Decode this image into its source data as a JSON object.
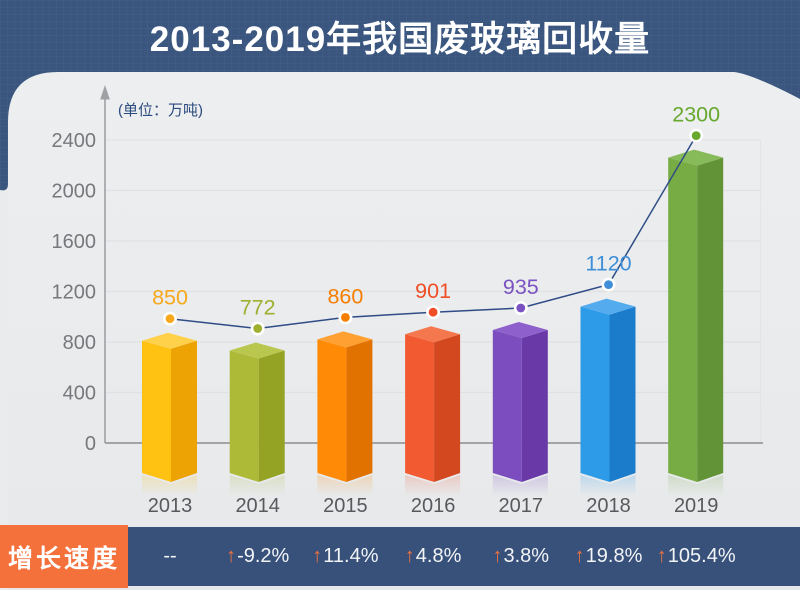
{
  "page": {
    "bg": "#E9EBED",
    "card_bg": "#ECEDEF"
  },
  "header": {
    "title": "2013-2019年我国废玻璃回收量",
    "bg": "#3A567F",
    "text_color": "#FFFFFF"
  },
  "chart_data": {
    "type": "bar",
    "title": "2013-2019年我国废玻璃回收量",
    "unit_label": "(单位：万吨)",
    "categories": [
      "2013",
      "2014",
      "2015",
      "2016",
      "2017",
      "2018",
      "2019"
    ],
    "series": [
      {
        "name": "废玻璃回收量(万吨)",
        "type": "bar+line",
        "values": [
          850,
          772,
          860,
          901,
          935,
          1120,
          2300
        ]
      },
      {
        "name": "增长速度",
        "type": "table-row",
        "values": [
          "--",
          "-9.2%",
          "11.4%",
          "4.8%",
          "3.8%",
          "19.8%",
          "105.4%"
        ]
      }
    ],
    "y_ticks": [
      0,
      400,
      800,
      1200,
      1600,
      2000,
      2400
    ],
    "ylim": [
      0,
      2400
    ],
    "grid": true,
    "legend": false,
    "line_color": "#2F4C86",
    "axis_color": "#8C8C8E",
    "grid_color": "#DFE1E4",
    "tick_label_color": "#77787B",
    "category_label_color": "#58595C",
    "bar_styles": [
      {
        "front": "#FFC112",
        "side": "#EDA303",
        "top": "#FFD04A",
        "label": "#F7A81B"
      },
      {
        "front": "#ACBA38",
        "side": "#95A324",
        "top": "#BAC74E",
        "label": "#9FAF30"
      },
      {
        "front": "#FF8A05",
        "side": "#E27200",
        "top": "#FFA033",
        "label": "#F57E01"
      },
      {
        "front": "#F25B31",
        "side": "#D4481F",
        "top": "#F4774E",
        "label": "#EF4E26"
      },
      {
        "front": "#7C4DBF",
        "side": "#6839A7",
        "top": "#8E60CC",
        "label": "#7B52C1"
      },
      {
        "front": "#2E9BE8",
        "side": "#1C7CCC",
        "top": "#54ACEF",
        "label": "#3E8ED8"
      },
      {
        "front": "#76AC43",
        "side": "#629437",
        "top": "#87BA58",
        "label": "#67A82D"
      }
    ]
  },
  "growth_row": {
    "label": "增长速度",
    "label_bg": "#F5713B",
    "bg": "#37517B",
    "text_color": "#F3F4F6",
    "arrow": "↑",
    "arrow_color": "#F5713B",
    "cells": [
      {
        "arrow": false,
        "text": "--"
      },
      {
        "arrow": true,
        "text": "-9.2%"
      },
      {
        "arrow": true,
        "text": "11.4%"
      },
      {
        "arrow": true,
        "text": "4.8%"
      },
      {
        "arrow": true,
        "text": "3.8%"
      },
      {
        "arrow": true,
        "text": "19.8%"
      },
      {
        "arrow": true,
        "text": "105.4%"
      }
    ]
  }
}
